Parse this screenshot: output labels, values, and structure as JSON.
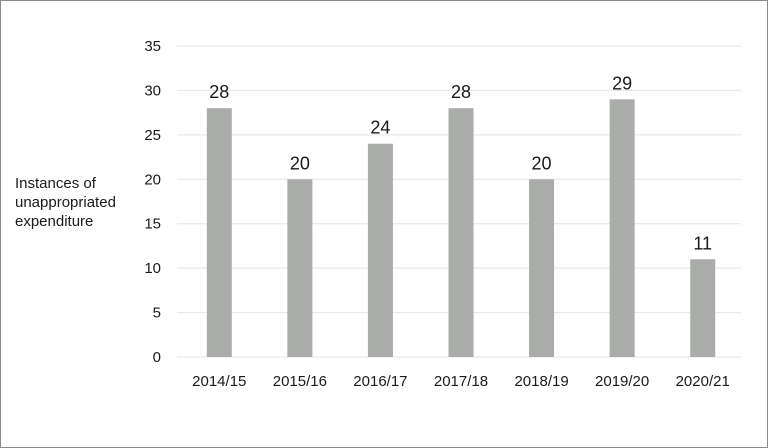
{
  "chart_data": {
    "type": "bar",
    "ylabel": "Instances of unappropriated expenditure",
    "xlabel": "",
    "categories": [
      "2014/15",
      "2015/16",
      "2016/17",
      "2017/18",
      "2018/19",
      "2019/20",
      "2020/21"
    ],
    "values": [
      28,
      20,
      24,
      28,
      20,
      29,
      11
    ],
    "data_labels": [
      "28",
      "20",
      "24",
      "28",
      "20",
      "29",
      "11"
    ],
    "ylim": [
      0,
      35
    ],
    "yticks": [
      "0",
      "5",
      "10",
      "15",
      "20",
      "25",
      "30",
      "35"
    ],
    "grid": true,
    "bar_color": "#a9aca9",
    "grid_color": "#e4e4e4"
  }
}
